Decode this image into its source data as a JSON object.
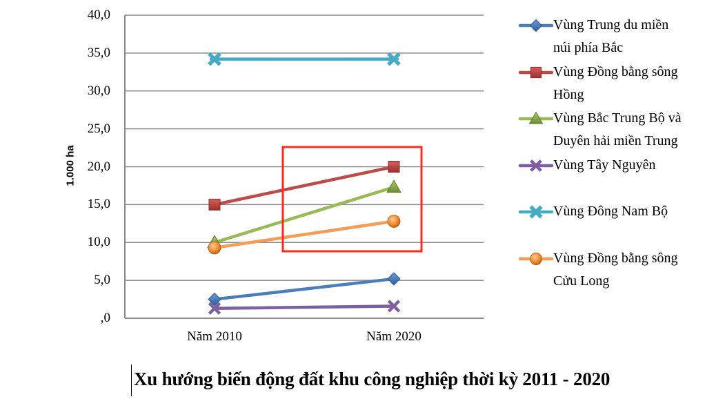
{
  "chart_data": {
    "type": "line",
    "title": "Xu hướng biến động đất khu công nghiệp thời kỳ 2011 - 2020",
    "xlabel": "",
    "ylabel": "1.000 ha",
    "categories": [
      "Năm 2010",
      "Năm 2020"
    ],
    "ylim": [
      0,
      40
    ],
    "yticks": [
      ",0",
      "5,0",
      "10,0",
      "15,0",
      "20,0",
      "25,0",
      "30,0",
      "35,0",
      "40,0"
    ],
    "grid": true,
    "legend_position": "right",
    "series": [
      {
        "name": "Vùng Trung du miền núi phía Bắc",
        "values": [
          2.5,
          5.2
        ],
        "color": "#4a7ebb",
        "marker": "diamond"
      },
      {
        "name": "Vùng Đồng bằng sông Hồng",
        "values": [
          15.0,
          20.0
        ],
        "color": "#be4b48",
        "marker": "square"
      },
      {
        "name": "Vùng Bắc Trung Bộ và Duyên hải miền Trung",
        "values": [
          10.0,
          17.3
        ],
        "color": "#98b954",
        "marker": "triangle"
      },
      {
        "name": "Vùng Tây Nguyên",
        "values": [
          1.3,
          1.6
        ],
        "color": "#7d60a0",
        "marker": "x"
      },
      {
        "name": "Vùng Đông Nam Bộ",
        "values": [
          34.2,
          34.2
        ],
        "color": "#46aac5",
        "marker": "star"
      },
      {
        "name": "Vùng Đồng bằng sông Cửu Long",
        "values": [
          9.3,
          12.8
        ],
        "color": "#f59d56",
        "marker": "circle"
      }
    ],
    "annotations": [
      {
        "type": "highlight-rectangle",
        "color": "#ff2a1f",
        "covers": "Năm 2020 points of Đồng bằng sông Hồng, Bắc Trung Bộ, Đồng bằng sông Cửu Long"
      }
    ]
  },
  "axis": {
    "ylabel": "1.000 ha",
    "yticks": [
      ",0",
      "5,0",
      "10,0",
      "15,0",
      "20,0",
      "25,0",
      "30,0",
      "35,0",
      "40,0"
    ],
    "xticks": [
      "Năm 2010",
      "Năm 2020"
    ]
  },
  "legend": [
    {
      "line1": "Vùng Trung du miền",
      "line2": "núi phía Bắc"
    },
    {
      "line1": "Vùng Đồng bằng sông",
      "line2": "Hồng"
    },
    {
      "line1": "Vùng Bắc Trung Bộ và",
      "line2": "Duyên hải miền Trung"
    },
    {
      "line1": "Vùng Tây Nguyên",
      "line2": ""
    },
    {
      "line1": "Vùng Đông Nam Bộ",
      "line2": ""
    },
    {
      "line1": "Vùng Đồng bằng sông",
      "line2": "Cửu Long"
    }
  ],
  "caption": "Xu hướng biến động đất khu công nghiệp thời kỳ 2011 - 2020"
}
